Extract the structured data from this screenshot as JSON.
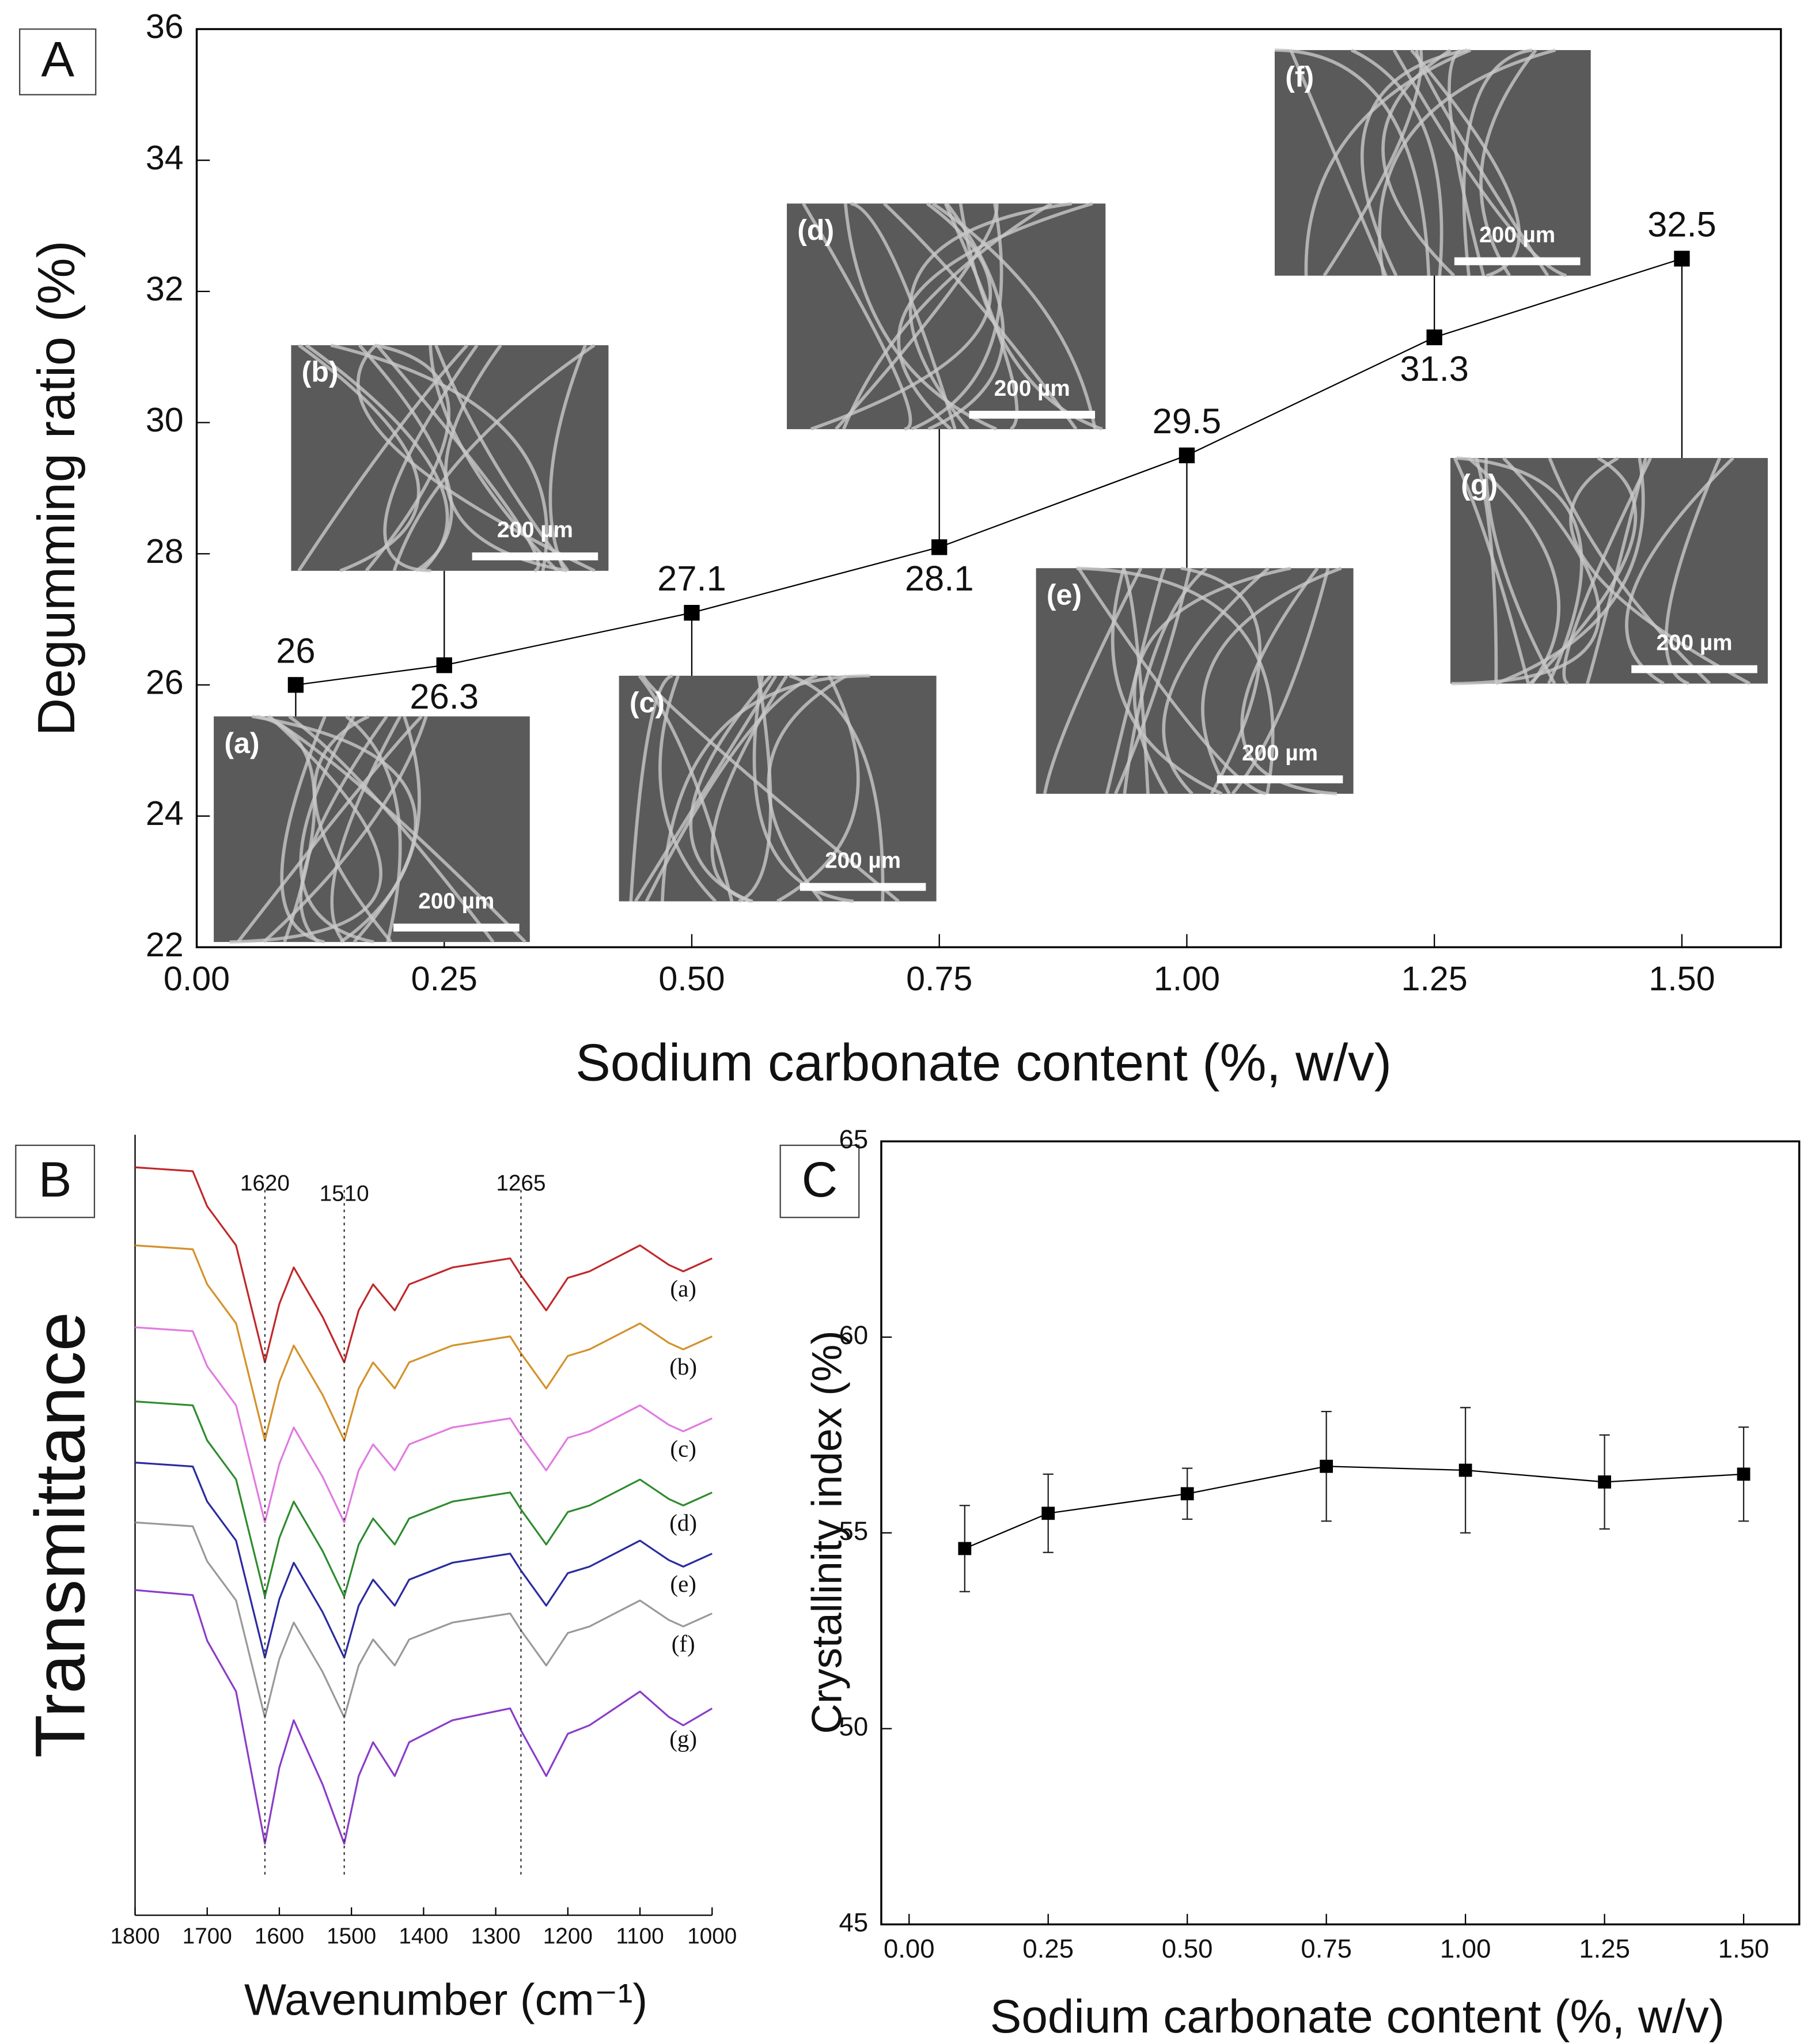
{
  "chart_data": [
    {
      "type": "line",
      "panel": "A",
      "y_label": "Degumming ratio (%)",
      "x_label": "Sodium carbonate content (%, w/v)",
      "x": [
        0.1,
        0.25,
        0.5,
        0.75,
        1.0,
        1.25,
        1.5
      ],
      "values": [
        26,
        26.3,
        27.1,
        28.1,
        29.5,
        31.3,
        32.5
      ],
      "color": "#000000",
      "xlim": [
        0,
        1.6
      ],
      "xticks": [
        {
          "value": 0,
          "label": "0.00"
        },
        {
          "value": 0.25,
          "label": "0.25"
        },
        {
          "value": 0.5,
          "label": "0.50"
        },
        {
          "value": 0.75,
          "label": "0.75"
        },
        {
          "value": 1,
          "label": "1.00"
        },
        {
          "value": 1.25,
          "label": "1.25"
        },
        {
          "value": 1.5,
          "label": "1.50"
        }
      ],
      "ylim": [
        22,
        36
      ],
      "yticks": [
        22,
        24,
        26,
        28,
        30,
        32,
        34,
        36
      ],
      "insets": [
        {
          "label": "(a)",
          "scale_bar": "200 µm"
        },
        {
          "label": "(b)",
          "scale_bar": "200 µm"
        },
        {
          "label": "(c)",
          "scale_bar": "200 µm"
        },
        {
          "label": "(d)",
          "scale_bar": "200 µm"
        },
        {
          "label": "(e)",
          "scale_bar": "200 µm"
        },
        {
          "label": "(f)",
          "scale_bar": "200 µm"
        },
        {
          "label": "(g)",
          "scale_bar": "200 µm"
        }
      ]
    },
    {
      "type": "line",
      "panel": "B",
      "y_label": "Transmittance",
      "x_label": "Wavenumber (cm⁻¹)",
      "x": [
        1800,
        1720,
        1700,
        1660,
        1640,
        1620,
        1600,
        1580,
        1540,
        1510,
        1490,
        1470,
        1440,
        1420,
        1360,
        1280,
        1265,
        1230,
        1200,
        1170,
        1100,
        1060,
        1040,
        1000
      ],
      "series": [
        {
          "name": "(a)",
          "color": "#c0282a",
          "values": [
            575,
            572,
            545,
            515,
            470,
            425,
            470,
            498,
            460,
            425,
            465,
            485,
            465,
            485,
            498,
            505,
            492,
            465,
            490,
            495,
            515,
            500,
            495,
            505
          ]
        },
        {
          "name": "(b)",
          "color": "#d4912a",
          "values": [
            515,
            512,
            485,
            455,
            410,
            365,
            410,
            438,
            400,
            365,
            405,
            425,
            405,
            425,
            438,
            445,
            432,
            405,
            430,
            435,
            455,
            440,
            435,
            445
          ]
        },
        {
          "name": "(c)",
          "color": "#e07be0",
          "values": [
            452,
            449,
            422,
            392,
            347,
            302,
            347,
            375,
            337,
            302,
            342,
            362,
            342,
            362,
            375,
            382,
            369,
            342,
            367,
            372,
            392,
            377,
            372,
            382
          ]
        },
        {
          "name": "(d)",
          "color": "#2e8b2e",
          "values": [
            395,
            392,
            365,
            335,
            290,
            245,
            290,
            318,
            280,
            245,
            285,
            305,
            285,
            305,
            318,
            325,
            312,
            285,
            310,
            315,
            335,
            320,
            315,
            325
          ]
        },
        {
          "name": "(e)",
          "color": "#2a2aa0",
          "values": [
            348,
            345,
            318,
            288,
            243,
            198,
            243,
            271,
            233,
            198,
            238,
            258,
            238,
            258,
            271,
            278,
            265,
            238,
            263,
            268,
            288,
            273,
            268,
            278
          ]
        },
        {
          "name": "(f)",
          "color": "#999999",
          "values": [
            302,
            299,
            272,
            242,
            197,
            152,
            197,
            225,
            187,
            152,
            192,
            212,
            192,
            212,
            225,
            232,
            219,
            192,
            217,
            222,
            242,
            227,
            222,
            232
          ]
        },
        {
          "name": "(g)",
          "color": "#8a3cc8",
          "values": [
            250,
            246.1,
            211,
            172,
            113.5,
            55,
            113.5,
            149.9,
            100.5,
            55,
            107,
            133,
            107,
            133,
            149.9,
            159,
            142.1,
            107,
            139.5,
            146,
            172,
            152.5,
            146,
            159
          ]
        }
      ],
      "xlim": [
        1800,
        1000
      ],
      "xticks": [
        1800,
        1700,
        1600,
        1500,
        1400,
        1300,
        1200,
        1100,
        1000
      ],
      "ylim": [
        0,
        600
      ],
      "peaks": [
        1620,
        1510,
        1265
      ]
    },
    {
      "type": "line",
      "panel": "C",
      "y_label": "Crystallinity index (%)",
      "x_label": "Sodium carbonate content (%, w/v)",
      "x": [
        0.1,
        0.25,
        0.5,
        0.75,
        1.0,
        1.25,
        1.5
      ],
      "values": [
        54.6,
        55.5,
        56.0,
        56.7,
        56.6,
        56.3,
        56.5
      ],
      "errors": [
        1.1,
        1.0,
        0.65,
        1.4,
        1.6,
        1.2,
        1.2
      ],
      "color": "#000000",
      "xlim": [
        -0.05,
        1.6
      ],
      "xticks": [
        {
          "value": 0,
          "label": "0.00"
        },
        {
          "value": 0.25,
          "label": "0.25"
        },
        {
          "value": 0.5,
          "label": "0.50"
        },
        {
          "value": 0.75,
          "label": "0.75"
        },
        {
          "value": 1,
          "label": "1.00"
        },
        {
          "value": 1.25,
          "label": "1.25"
        },
        {
          "value": 1.5,
          "label": "1.50"
        }
      ],
      "ylim": [
        45,
        65
      ],
      "yticks": [
        45,
        50,
        55,
        60,
        65
      ]
    }
  ]
}
